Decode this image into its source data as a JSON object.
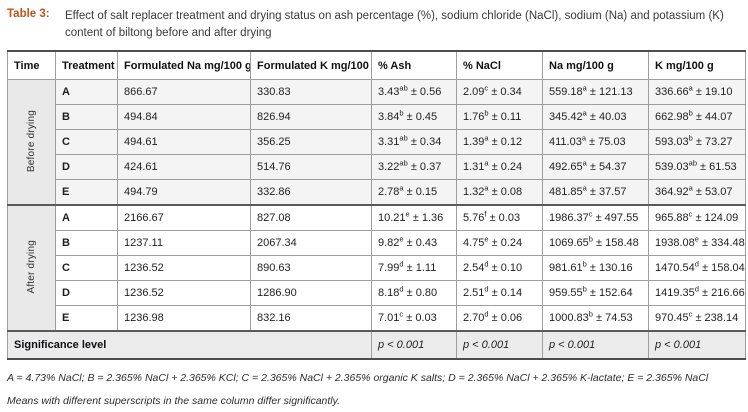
{
  "title": {
    "label": "Table 3:",
    "text": "Effect of salt replacer treatment and drying status on ash percentage (%), sodium chloride (NaCl), sodium (Na) and potassium (K) content of biltong before and after drying"
  },
  "colors": {
    "accent": "#c0541a",
    "row_group_bg": "#e9e9e9",
    "before_row_bg": "#f4f4f4",
    "significance_row_bg": "#ebebeb",
    "border_thin": "#9e9e9e",
    "border_thick": "#4d4d4d"
  },
  "table": {
    "columns": [
      "Time",
      "Treatment",
      "Formulated Na mg/100 g",
      "Formulated K mg/100 g",
      "% Ash",
      "% NaCl",
      "Na mg/100 g",
      "K mg/100 g"
    ],
    "groups": [
      {
        "time_label": "Before drying",
        "rows": [
          {
            "treatment": "A",
            "formulated_na": "866.67",
            "formulated_k": "330.83",
            "ash": {
              "mean": "3.43",
              "sup": "ab",
              "sd": "0.56"
            },
            "nacl": {
              "mean": "2.09",
              "sup": "c",
              "sd": "0.34"
            },
            "na": {
              "mean": "559.18",
              "sup": "a",
              "sd": "121.13"
            },
            "k": {
              "mean": "336.66",
              "sup": "a",
              "sd": "19.10"
            }
          },
          {
            "treatment": "B",
            "formulated_na": "494.84",
            "formulated_k": "826.94",
            "ash": {
              "mean": "3.84",
              "sup": "b",
              "sd": "0.45"
            },
            "nacl": {
              "mean": "1.76",
              "sup": "b",
              "sd": "0.11"
            },
            "na": {
              "mean": "345.42",
              "sup": "a",
              "sd": "40.03"
            },
            "k": {
              "mean": "662.98",
              "sup": "b",
              "sd": "44.07"
            }
          },
          {
            "treatment": "C",
            "formulated_na": "494.61",
            "formulated_k": "356.25",
            "ash": {
              "mean": "3.31",
              "sup": "ab",
              "sd": "0.34"
            },
            "nacl": {
              "mean": "1.39",
              "sup": "a",
              "sd": "0.12"
            },
            "na": {
              "mean": "411.03",
              "sup": "a",
              "sd": "75.03"
            },
            "k": {
              "mean": "593.03",
              "sup": "b",
              "sd": "73.27"
            }
          },
          {
            "treatment": "D",
            "formulated_na": "424.61",
            "formulated_k": "514.76",
            "ash": {
              "mean": "3.22",
              "sup": "ab",
              "sd": "0.37"
            },
            "nacl": {
              "mean": "1.31",
              "sup": "a",
              "sd": "0.24"
            },
            "na": {
              "mean": "492.65",
              "sup": "a",
              "sd": "54.37"
            },
            "k": {
              "mean": "539.03",
              "sup": "ab",
              "sd": "61.53"
            }
          },
          {
            "treatment": "E",
            "formulated_na": "494.79",
            "formulated_k": "332.86",
            "ash": {
              "mean": "2.78",
              "sup": "a",
              "sd": "0.15"
            },
            "nacl": {
              "mean": "1.32",
              "sup": "a",
              "sd": "0.08"
            },
            "na": {
              "mean": "481.85",
              "sup": "a",
              "sd": "37.57"
            },
            "k": {
              "mean": "364.92",
              "sup": "a",
              "sd": "53.07"
            }
          }
        ]
      },
      {
        "time_label": "After drying",
        "rows": [
          {
            "treatment": "A",
            "formulated_na": "2166.67",
            "formulated_k": "827.08",
            "ash": {
              "mean": "10.21",
              "sup": "e",
              "sd": "1.36"
            },
            "nacl": {
              "mean": "5.76",
              "sup": "f",
              "sd": "0.03"
            },
            "na": {
              "mean": "1986.37",
              "sup": "c",
              "sd": "497.55"
            },
            "k": {
              "mean": "965.88",
              "sup": "c",
              "sd": "124.09"
            }
          },
          {
            "treatment": "B",
            "formulated_na": "1237.11",
            "formulated_k": "2067.34",
            "ash": {
              "mean": "9.82",
              "sup": "e",
              "sd": "0.43"
            },
            "nacl": {
              "mean": "4.75",
              "sup": "e",
              "sd": "0.24"
            },
            "na": {
              "mean": "1069.65",
              "sup": "b",
              "sd": "158.48"
            },
            "k": {
              "mean": "1938.08",
              "sup": "e",
              "sd": "334.48"
            }
          },
          {
            "treatment": "C",
            "formulated_na": "1236.52",
            "formulated_k": "890.63",
            "ash": {
              "mean": "7.99",
              "sup": "d",
              "sd": "1.11"
            },
            "nacl": {
              "mean": "2.54",
              "sup": "d",
              "sd": "0.10"
            },
            "na": {
              "mean": "981.61",
              "sup": "b",
              "sd": "130.16"
            },
            "k": {
              "mean": "1470.54",
              "sup": "d",
              "sd": "158.04"
            }
          },
          {
            "treatment": "D",
            "formulated_na": "1236.52",
            "formulated_k": "1286.90",
            "ash": {
              "mean": "8.18",
              "sup": "d",
              "sd": "0.80"
            },
            "nacl": {
              "mean": "2.51",
              "sup": "d",
              "sd": "0.14"
            },
            "na": {
              "mean": "959.55",
              "sup": "b",
              "sd": "152.64"
            },
            "k": {
              "mean": "1419.35",
              "sup": "d",
              "sd": "216.66"
            }
          },
          {
            "treatment": "E",
            "formulated_na": "1236.98",
            "formulated_k": "832.16",
            "ash": {
              "mean": "7.01",
              "sup": "c",
              "sd": "0.03"
            },
            "nacl": {
              "mean": "2.70",
              "sup": "d",
              "sd": "0.06"
            },
            "na": {
              "mean": "1000.83",
              "sup": "b",
              "sd": "74.53"
            },
            "k": {
              "mean": "970.45",
              "sup": "c",
              "sd": "238.14"
            }
          }
        ]
      }
    ],
    "significance": {
      "label": "Significance level",
      "values": [
        "p < 0.001",
        "p < 0.001",
        "p < 0.001",
        "p < 0.001"
      ]
    }
  },
  "footnotes": [
    "A = 4.73% NaCl; B = 2.365% NaCl + 2.365% KCl; C = 2.365% NaCl + 2.365% organic K salts; D = 2.365% NaCl + 2.365% K-lactate; E = 2.365% NaCl",
    "Means with different superscripts in the same column differ significantly."
  ]
}
